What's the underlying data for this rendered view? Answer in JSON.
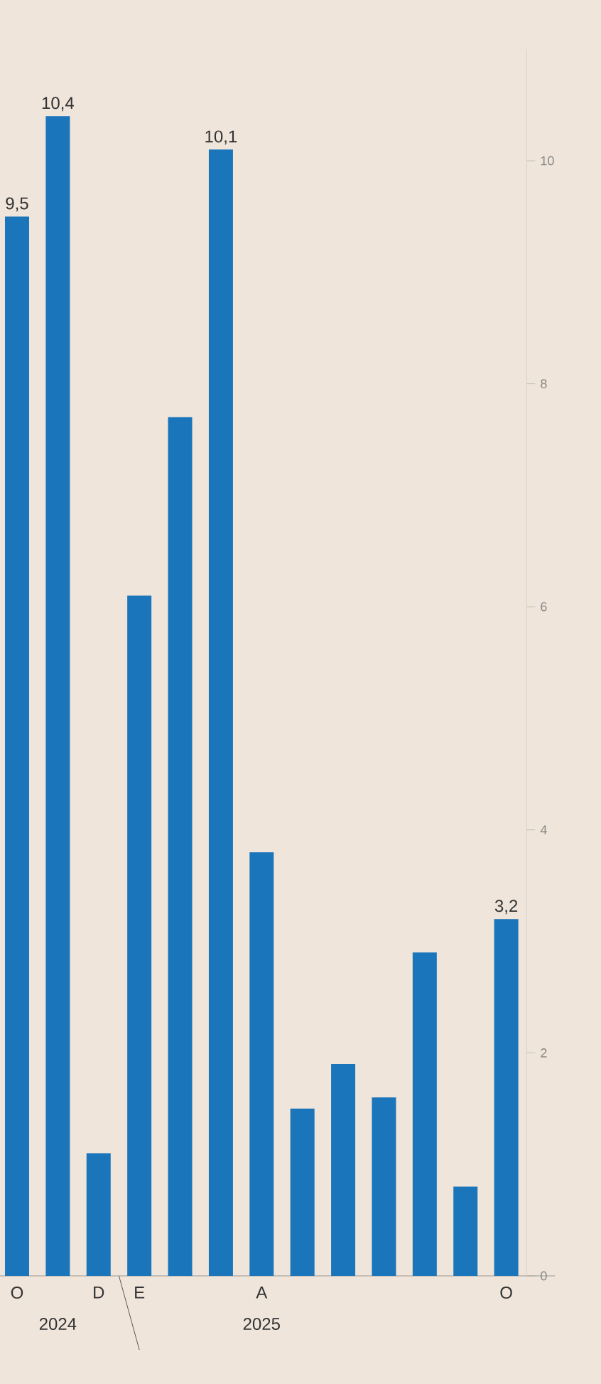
{
  "chart_data": {
    "type": "bar",
    "categories": [
      "O",
      null,
      "D",
      "E",
      null,
      null,
      "A",
      null,
      null,
      null,
      null,
      null,
      "O"
    ],
    "values": [
      9.5,
      10.4,
      1.1,
      6.1,
      7.7,
      10.1,
      3.8,
      1.5,
      1.9,
      1.6,
      2.9,
      0.8,
      3.2
    ],
    "value_labels": [
      "9,5",
      "10,4",
      null,
      null,
      null,
      "10,1",
      null,
      null,
      null,
      null,
      null,
      null,
      "3,2"
    ],
    "color": "#1a75bb",
    "ylim": [
      0,
      11
    ],
    "yticks": [
      0,
      2,
      4,
      6,
      8,
      10
    ],
    "annotations": [
      "2024",
      "2025"
    ],
    "grid": false
  }
}
